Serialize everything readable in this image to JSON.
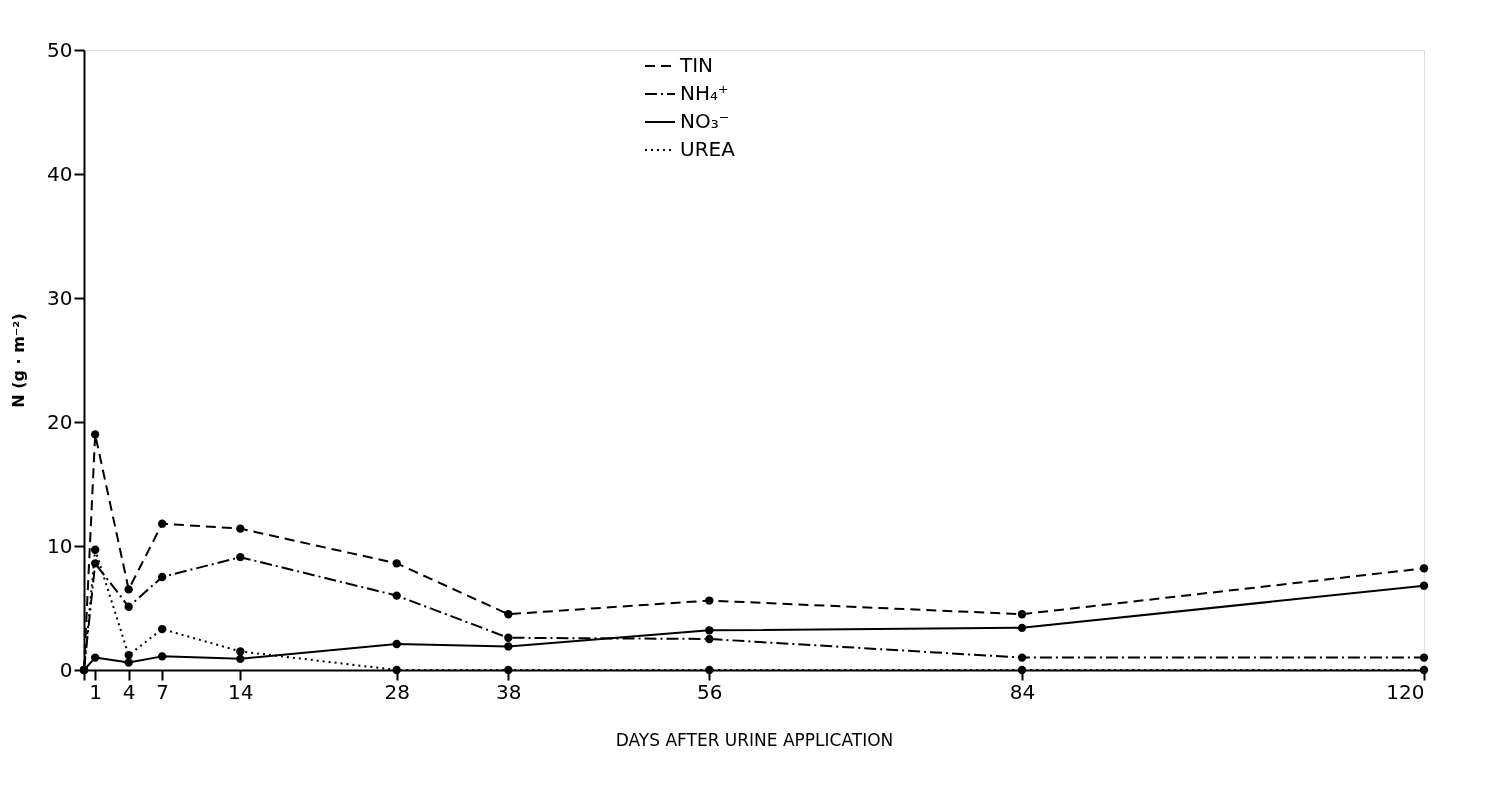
{
  "chart_data": {
    "type": "line",
    "xlabel": "DAYS AFTER URINE APPLICATION",
    "ylabel": "N (g · m⁻²)",
    "x": [
      0,
      1,
      4,
      7,
      14,
      28,
      38,
      56,
      84,
      120
    ],
    "xlim": [
      0,
      120
    ],
    "xticks": [
      {
        "value": 0,
        "label": null
      },
      1,
      4,
      7,
      14,
      28,
      38,
      56,
      84,
      120
    ],
    "ylim": [
      0,
      50
    ],
    "yticks": [
      0,
      10,
      20,
      30,
      40,
      50
    ],
    "grid": false,
    "legend": "top",
    "marker": "circle",
    "series": [
      {
        "name": "TIN",
        "color": "#000000",
        "line_style": "dashed",
        "values": [
          0,
          19.0,
          6.5,
          11.8,
          11.4,
          8.6,
          4.5,
          5.6,
          4.5,
          8.2
        ]
      },
      {
        "name": "NH₄⁺",
        "color": "#000000",
        "line_style": "dashdot",
        "values": [
          0,
          8.6,
          5.1,
          7.5,
          9.1,
          6.0,
          2.6,
          2.5,
          1.0,
          1.0
        ]
      },
      {
        "name": "NO₃⁻",
        "color": "#000000",
        "line_style": "solid",
        "values": [
          0,
          1.0,
          0.6,
          1.1,
          0.9,
          2.1,
          1.9,
          3.2,
          3.4,
          6.8
        ]
      },
      {
        "name": "UREA",
        "color": "#000000",
        "line_style": "dotted",
        "values": [
          0,
          9.7,
          1.2,
          3.3,
          1.5,
          0,
          0,
          0,
          0,
          0
        ]
      }
    ]
  }
}
